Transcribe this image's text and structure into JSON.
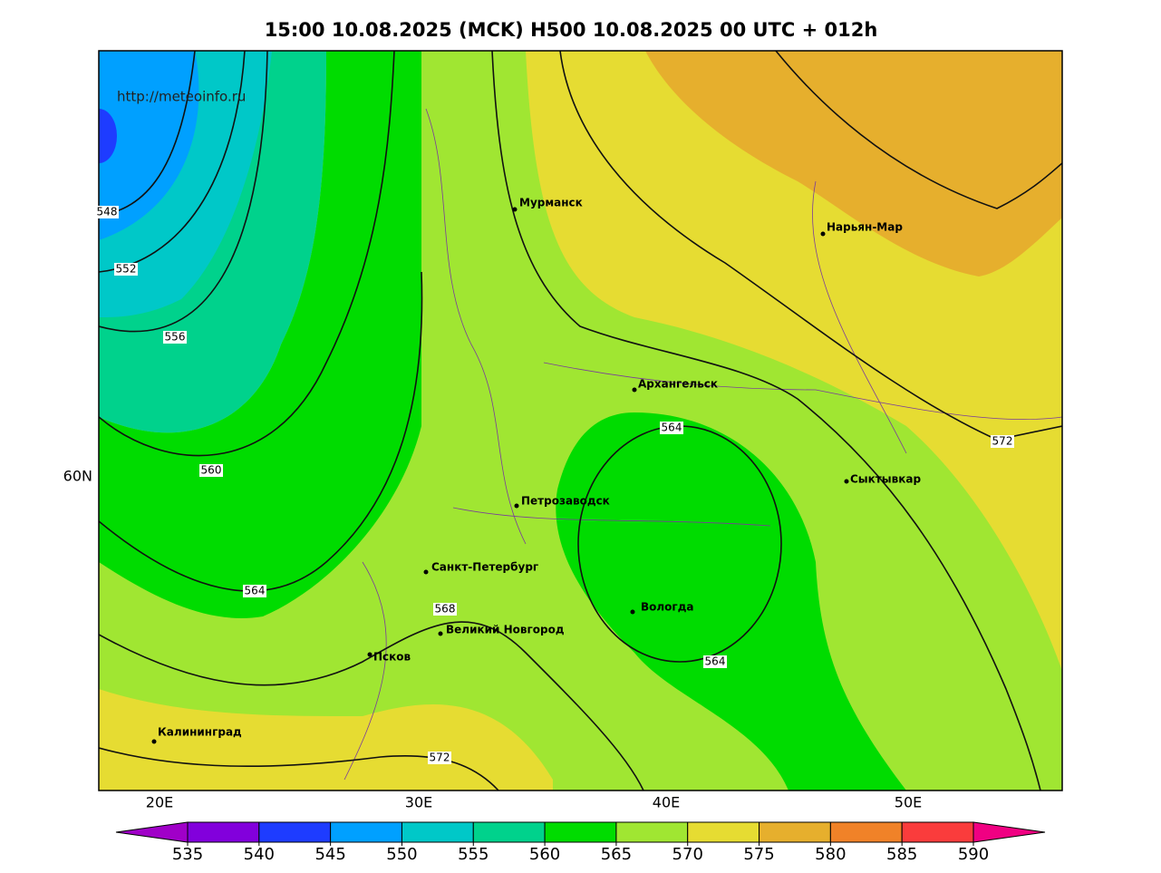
{
  "title": "15:00 10.08.2025 (MCK) H500  10.08.2025 00 UTC + 012h",
  "watermark": "http://meteoinfo.ru",
  "lat_labels": [
    "60N"
  ],
  "lon_labels": [
    "20E",
    "30E",
    "40E",
    "50E"
  ],
  "cities": [
    "Мурманск",
    "Нарьян-Мар",
    "Архангельск",
    "Сыктывкар",
    "Петрозаводск",
    "Санкт-Петербург",
    "Вологда",
    "Великий Новгород",
    "Псков",
    "Калининград"
  ],
  "contour_labels": [
    548,
    552,
    556,
    560,
    564,
    568,
    572,
    564,
    564,
    572
  ],
  "colorbar": {
    "levels": [
      535,
      540,
      545,
      550,
      555,
      560,
      565,
      570,
      575,
      580,
      585,
      590
    ],
    "colors": [
      "#a000c8",
      "#8200dc",
      "#1e3cff",
      "#00a0ff",
      "#00c8c8",
      "#00d28c",
      "#00dc00",
      "#a0e632",
      "#e6dc32",
      "#e6af2d",
      "#f08228",
      "#fa3c3c",
      "#f00082"
    ]
  }
}
